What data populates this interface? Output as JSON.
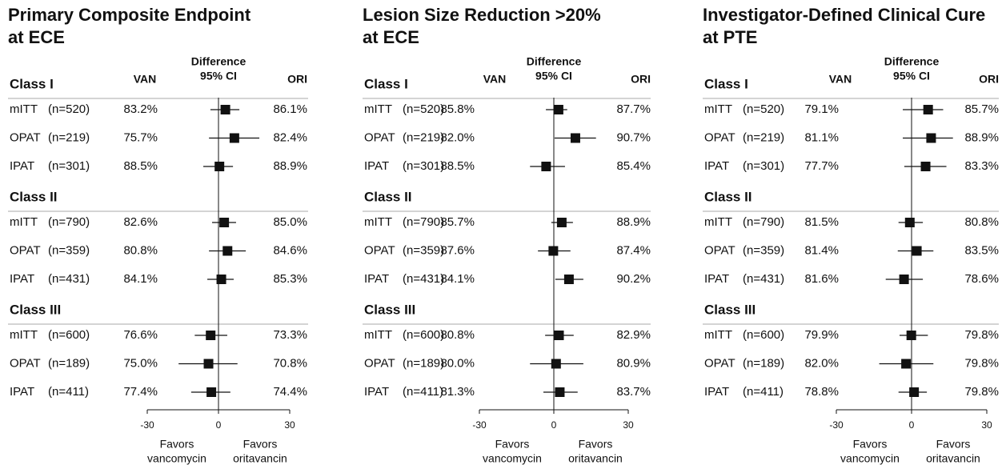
{
  "chart_data": [
    {
      "type": "forest",
      "title": [
        "Primary Composite Endpoint",
        "at ECE"
      ],
      "col_headers": {
        "van": "VAN",
        "diff": [
          "Difference",
          "95% CI"
        ],
        "ori": "ORI"
      },
      "groups": [
        {
          "name": "Class I",
          "rows": [
            {
              "label": "mITT",
              "n": "(n=520)",
              "van": "83.2%",
              "ori": "86.1%",
              "estimate": 2.9,
              "ci": [
                -3.4,
                8.8
              ]
            },
            {
              "label": "OPAT",
              "n": "(n=219)",
              "van": "75.7%",
              "ori": "82.4%",
              "estimate": 6.7,
              "ci": [
                -4,
                17.2
              ]
            },
            {
              "label": "IPAT",
              "n": "(n=301)",
              "van": "88.5%",
              "ori": "88.9%",
              "estimate": 0.4,
              "ci": [
                -6.4,
                6.1
              ]
            }
          ]
        },
        {
          "name": "Class II",
          "rows": [
            {
              "label": "mITT",
              "n": "(n=790)",
              "van": "82.6%",
              "ori": "85.0%",
              "estimate": 2.4,
              "ci": [
                -2.7,
                7.4
              ]
            },
            {
              "label": "OPAT",
              "n": "(n=359)",
              "van": "80.8%",
              "ori": "84.6%",
              "estimate": 3.8,
              "ci": [
                -4,
                11.5
              ]
            },
            {
              "label": "IPAT",
              "n": "(n=431)",
              "van": "84.1%",
              "ori": "85.3%",
              "estimate": 1.2,
              "ci": [
                -4.7,
                6.4
              ]
            }
          ]
        },
        {
          "name": "Class III",
          "rows": [
            {
              "label": "mITT",
              "n": "(n=600)",
              "van": "76.6%",
              "ori": "73.3%",
              "estimate": -3.3,
              "ci": [
                -10,
                3.7
              ]
            },
            {
              "label": "OPAT",
              "n": "(n=189)",
              "van": "75.0%",
              "ori": "70.8%",
              "estimate": -4.2,
              "ci": [
                -16.8,
                8
              ]
            },
            {
              "label": "IPAT",
              "n": "(n=411)",
              "van": "77.4%",
              "ori": "74.4%",
              "estimate": -3.0,
              "ci": [
                -11.5,
                5
              ]
            }
          ]
        }
      ],
      "xlim": [
        -30,
        30
      ],
      "xticks": [
        -30,
        0,
        30
      ],
      "favors": [
        [
          "Favors",
          "vancomycin"
        ],
        [
          "Favors",
          "oritavancin"
        ]
      ]
    },
    {
      "type": "forest",
      "title": [
        "Lesion Size Reduction >20%",
        "at ECE"
      ],
      "col_headers": {
        "van": "VAN",
        "diff": [
          "Difference",
          "95% CI"
        ],
        "ori": "ORI"
      },
      "groups": [
        {
          "name": "Class I",
          "rows": [
            {
              "label": "mITT",
              "n": "(n=520)",
              "van": "85.8%",
              "ori": "87.7%",
              "estimate": 1.9,
              "ci": [
                -3.2,
                5.4
              ]
            },
            {
              "label": "OPAT",
              "n": "(n=219)",
              "van": "82.0%",
              "ori": "90.7%",
              "estimate": 8.7,
              "ci": [
                0.3,
                17
              ]
            },
            {
              "label": "IPAT",
              "n": "(n=301)",
              "van": "88.5%",
              "ori": "85.4%",
              "estimate": -3.1,
              "ci": [
                -9.6,
                4.5
              ]
            }
          ]
        },
        {
          "name": "Class II",
          "rows": [
            {
              "label": "mITT",
              "n": "(n=790)",
              "van": "85.7%",
              "ori": "88.9%",
              "estimate": 3.2,
              "ci": [
                -1,
                7.7
              ]
            },
            {
              "label": "OPAT",
              "n": "(n=359)",
              "van": "87.6%",
              "ori": "87.4%",
              "estimate": -0.2,
              "ci": [
                -6.4,
                6.7
              ]
            },
            {
              "label": "IPAT",
              "n": "(n=431)",
              "van": "84.1%",
              "ori": "90.2%",
              "estimate": 6.1,
              "ci": [
                0.6,
                11.9
              ]
            }
          ]
        },
        {
          "name": "Class III",
          "rows": [
            {
              "label": "mITT",
              "n": "(n=600)",
              "van": "80.8%",
              "ori": "82.9%",
              "estimate": 2.1,
              "ci": [
                -3.5,
                8
              ]
            },
            {
              "label": "OPAT",
              "n": "(n=189)",
              "van": "80.0%",
              "ori": "80.9%",
              "estimate": 0.9,
              "ci": [
                -9.6,
                11.9
              ]
            },
            {
              "label": "IPAT",
              "n": "(n=411)",
              "van": "81.3%",
              "ori": "83.7%",
              "estimate": 2.4,
              "ci": [
                -4.2,
                9.6
              ]
            }
          ]
        }
      ],
      "xlim": [
        -30,
        30
      ],
      "xticks": [
        -30,
        0,
        30
      ],
      "favors": [
        [
          "Favors",
          "vancomycin"
        ],
        [
          "Favors",
          "oritavancin"
        ]
      ]
    },
    {
      "type": "forest",
      "title": [
        "Investigator-Defined Clinical Cure",
        "at PTE"
      ],
      "col_headers": {
        "van": "VAN",
        "diff": [
          "Difference",
          "95% CI"
        ],
        "ori": "ORI"
      },
      "groups": [
        {
          "name": "Class I",
          "rows": [
            {
              "label": "mITT",
              "n": "(n=520)",
              "van": "79.1%",
              "ori": "85.7%",
              "estimate": 6.6,
              "ci": [
                -3.5,
                12.6
              ]
            },
            {
              "label": "OPAT",
              "n": "(n=219)",
              "van": "81.1%",
              "ori": "88.9%",
              "estimate": 7.8,
              "ci": [
                -3.5,
                16.5
              ]
            },
            {
              "label": "IPAT",
              "n": "(n=301)",
              "van": "77.7%",
              "ori": "83.3%",
              "estimate": 5.6,
              "ci": [
                -2.9,
                13.9
              ]
            }
          ]
        },
        {
          "name": "Class II",
          "rows": [
            {
              "label": "mITT",
              "n": "(n=790)",
              "van": "81.5%",
              "ori": "80.8%",
              "estimate": -0.7,
              "ci": [
                -5.2,
                4.5
              ]
            },
            {
              "label": "OPAT",
              "n": "(n=359)",
              "van": "81.4%",
              "ori": "83.5%",
              "estimate": 2.1,
              "ci": [
                -5.5,
                8.7
              ]
            },
            {
              "label": "IPAT",
              "n": "(n=431)",
              "van": "81.6%",
              "ori": "78.6%",
              "estimate": -3.0,
              "ci": [
                -10.3,
                4.5
              ]
            }
          ]
        },
        {
          "name": "Class III",
          "rows": [
            {
              "label": "mITT",
              "n": "(n=600)",
              "van": "79.9%",
              "ori": "79.8%",
              "estimate": -0.1,
              "ci": [
                -4.8,
                6.5
              ]
            },
            {
              "label": "OPAT",
              "n": "(n=189)",
              "van": "82.0%",
              "ori": "79.8%",
              "estimate": -2.2,
              "ci": [
                -12.9,
                8.7
              ]
            },
            {
              "label": "IPAT",
              "n": "(n=411)",
              "van": "78.8%",
              "ori": "79.8%",
              "estimate": 1.0,
              "ci": [
                -5.2,
                6.1
              ]
            }
          ]
        }
      ],
      "xlim": [
        -30,
        30
      ],
      "xticks": [
        -30,
        0,
        30
      ],
      "favors": [
        [
          "Favors",
          "vancomycin"
        ],
        [
          "Favors",
          "oritavancin"
        ]
      ]
    }
  ]
}
